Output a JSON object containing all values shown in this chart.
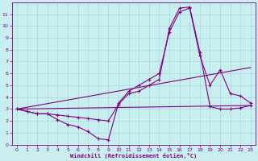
{
  "background_color": "#c8eef0",
  "grid_color": "#a8d8dc",
  "line_color": "#800080",
  "xlabel": "Windchill (Refroidissement éolien,°C)",
  "xlim": [
    -0.5,
    23.5
  ],
  "ylim": [
    0,
    12
  ],
  "xticks": [
    0,
    1,
    2,
    3,
    4,
    5,
    6,
    7,
    8,
    9,
    10,
    11,
    12,
    13,
    14,
    15,
    16,
    17,
    18,
    19,
    20,
    21,
    22,
    23
  ],
  "yticks": [
    0,
    1,
    2,
    3,
    4,
    5,
    6,
    7,
    8,
    9,
    10,
    11
  ],
  "curve1_x": [
    0,
    1,
    2,
    3,
    4,
    5,
    6,
    7,
    8,
    9,
    10,
    11,
    12,
    13,
    14,
    15,
    16,
    17,
    18,
    19,
    20,
    21,
    22,
    23
  ],
  "curve1_y": [
    3.0,
    2.8,
    2.6,
    2.6,
    2.1,
    1.7,
    1.5,
    1.1,
    0.5,
    0.4,
    3.5,
    4.5,
    5.0,
    5.5,
    6.0,
    9.5,
    11.2,
    11.5,
    7.5,
    5.0,
    6.3,
    4.3,
    4.1,
    3.5
  ],
  "curve2_x": [
    0,
    1,
    2,
    3,
    4,
    5,
    6,
    7,
    8,
    9,
    10,
    11,
    12,
    13,
    14,
    15,
    16,
    17,
    18,
    19,
    20,
    21,
    22,
    23
  ],
  "curve2_y": [
    3.0,
    2.8,
    2.6,
    2.6,
    2.5,
    2.4,
    2.3,
    2.2,
    2.1,
    2.0,
    3.4,
    4.3,
    4.5,
    5.0,
    5.5,
    9.8,
    11.5,
    11.6,
    7.8,
    3.2,
    3.0,
    3.0,
    3.1,
    3.3
  ],
  "line1_x": [
    0,
    23
  ],
  "line1_y": [
    3.0,
    6.5
  ],
  "line2_x": [
    0,
    23
  ],
  "line2_y": [
    3.0,
    3.3
  ],
  "figsize": [
    3.2,
    2.0
  ],
  "dpi": 100
}
